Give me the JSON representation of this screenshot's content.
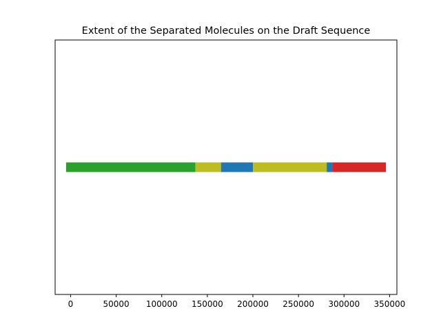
{
  "chart_data": {
    "type": "bar",
    "orientation": "horizontal-segments",
    "title": "Extent of the Separated Molecules on the Draft Sequence",
    "xlabel": "",
    "ylabel": "",
    "xlim": [
      -17000,
      358000
    ],
    "ylim": [
      -1,
      1
    ],
    "grid": false,
    "legend": "none",
    "y_axis_visible": false,
    "xticks": [
      0,
      50000,
      100000,
      150000,
      200000,
      250000,
      300000,
      350000
    ],
    "xtick_labels": [
      "0",
      "50000",
      "100000",
      "150000",
      "200000",
      "250000",
      "300000",
      "350000"
    ],
    "segments": [
      {
        "start": -5000,
        "end": 137000,
        "color": "#2ca02c"
      },
      {
        "start": 137000,
        "end": 165000,
        "color": "#bcbd22"
      },
      {
        "start": 165000,
        "end": 200000,
        "color": "#1f77b4"
      },
      {
        "start": 200000,
        "end": 281000,
        "color": "#bcbd22"
      },
      {
        "start": 281000,
        "end": 287000,
        "color": "#1f77b4"
      },
      {
        "start": 287000,
        "end": 346000,
        "color": "#d62728"
      }
    ],
    "bar_y": 0
  }
}
